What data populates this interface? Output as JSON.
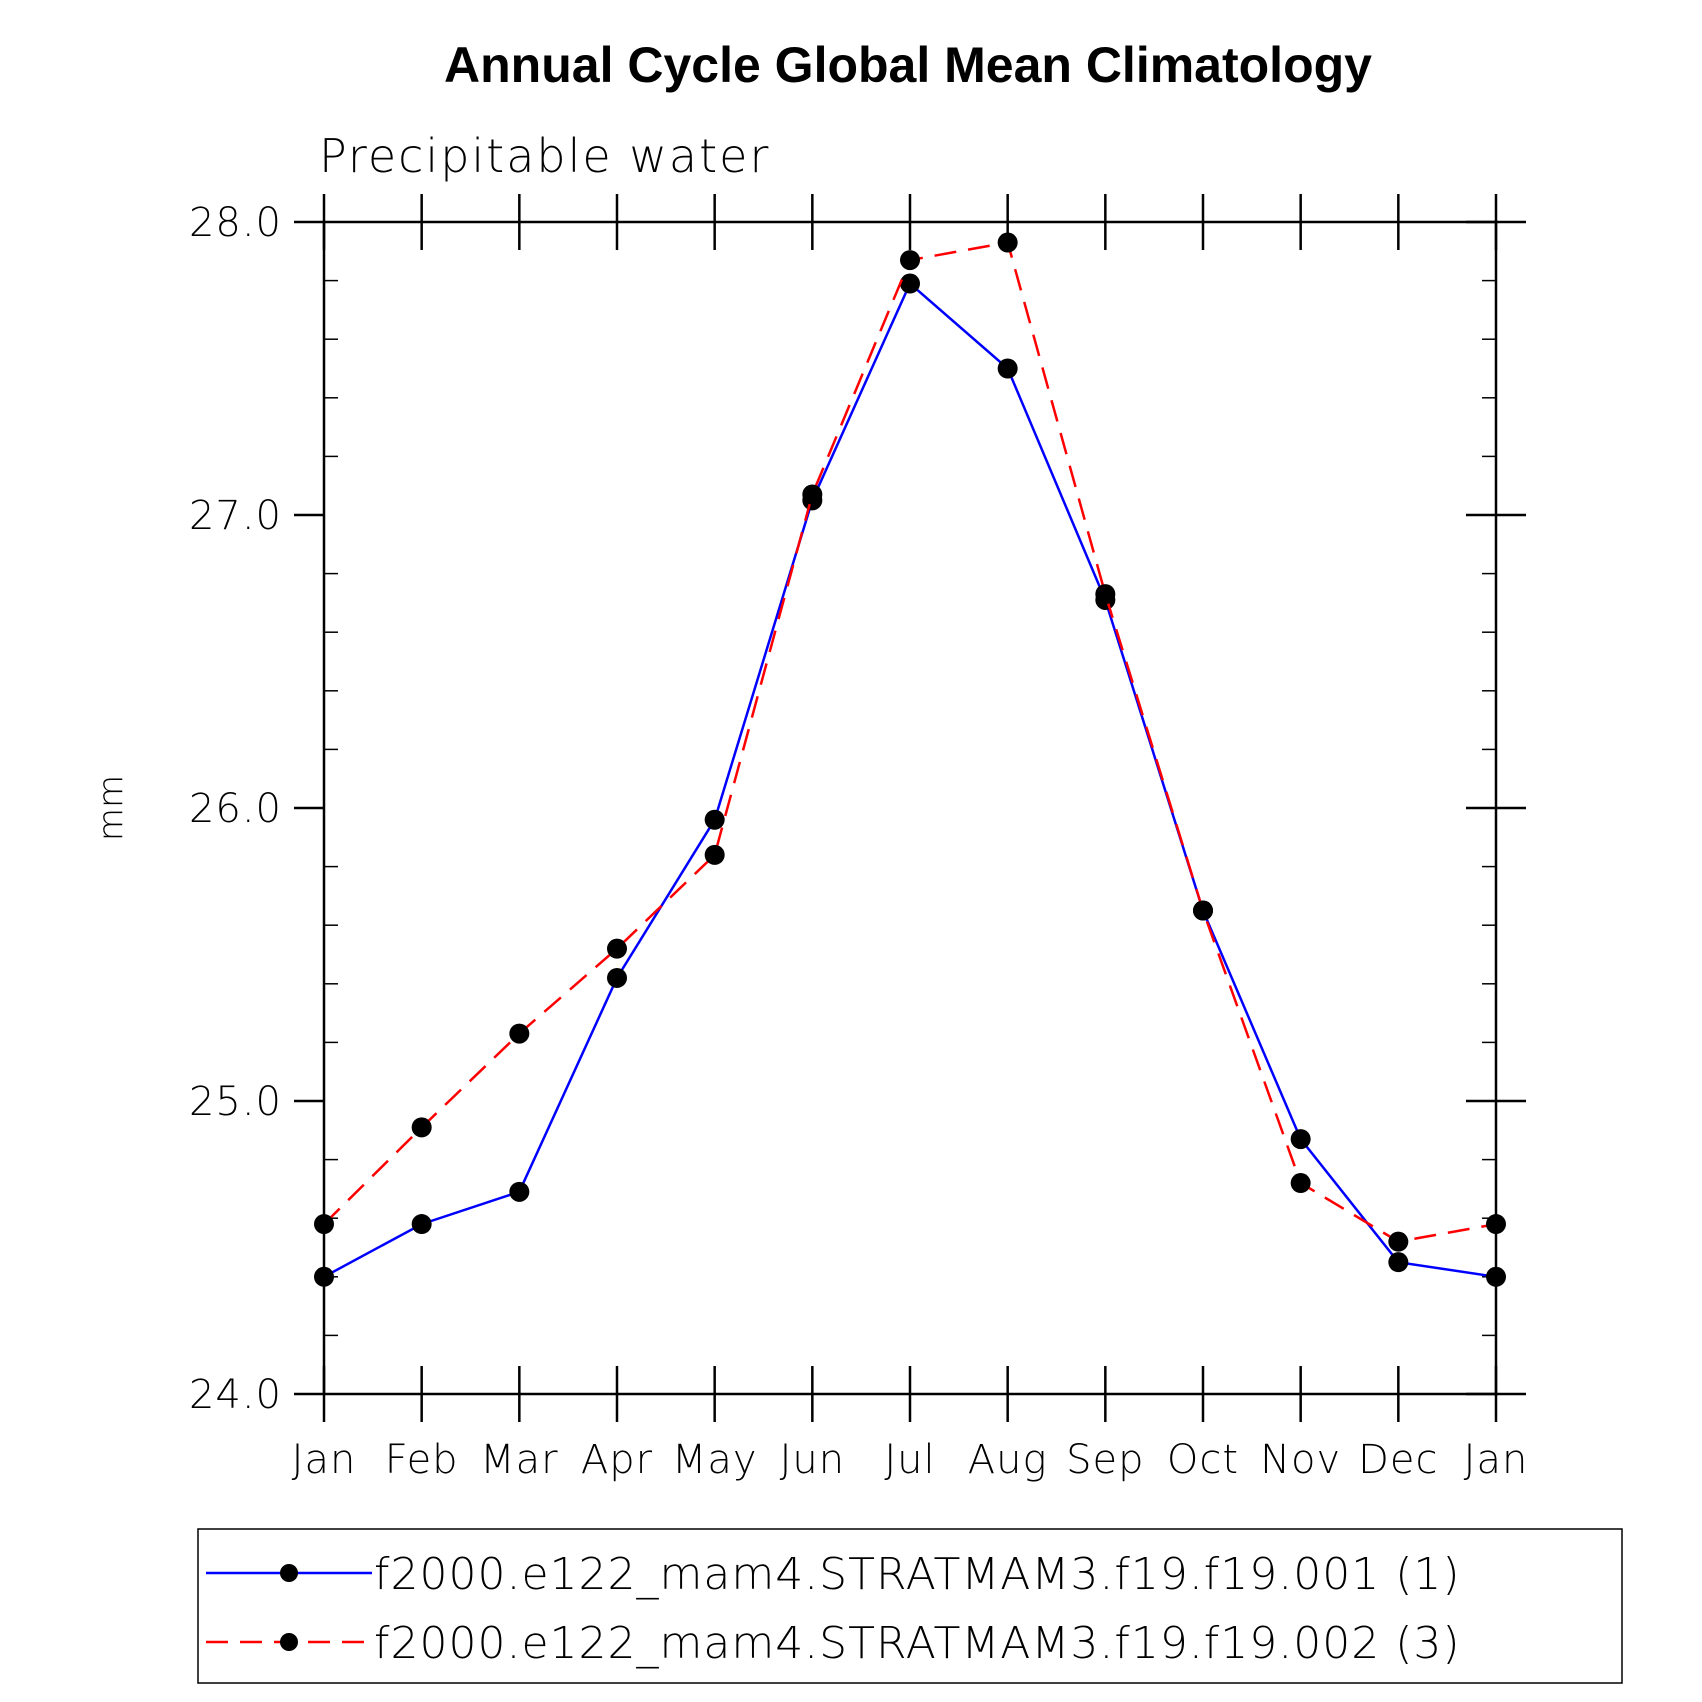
{
  "chart_data": {
    "type": "line",
    "title": "Annual Cycle Global Mean Climatology",
    "subtitle": "Precipitable water",
    "xlabel": "",
    "ylabel": "mm",
    "categories": [
      "Jan",
      "Feb",
      "Mar",
      "Apr",
      "May",
      "Jun",
      "Jul",
      "Aug",
      "Sep",
      "Oct",
      "Nov",
      "Dec",
      "Jan"
    ],
    "ylim": [
      24.0,
      28.0
    ],
    "yticks": [
      "24.0",
      "25.0",
      "26.0",
      "27.0",
      "28.0"
    ],
    "grid": false,
    "legend_position": "bottom",
    "series": [
      {
        "name": "f2000.e122_mam4.STRATMAM3.f19.f19.001 (1)",
        "color": "#0000ff",
        "line_style": "solid",
        "marker": "filled-circle",
        "values": [
          24.4,
          24.58,
          24.69,
          25.42,
          25.96,
          27.05,
          27.79,
          27.5,
          26.71,
          25.65,
          24.87,
          24.45,
          24.4
        ]
      },
      {
        "name": "f2000.e122_mam4.STRATMAM3.f19.f19.002 (3)",
        "color": "#ff0000",
        "line_style": "dashed",
        "marker": "filled-circle",
        "values": [
          24.58,
          24.91,
          25.23,
          25.52,
          25.84,
          27.07,
          27.87,
          27.93,
          26.73,
          25.65,
          24.72,
          24.52,
          24.58
        ]
      }
    ]
  }
}
